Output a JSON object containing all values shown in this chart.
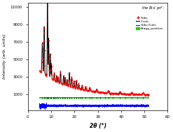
{
  "title": "the Bi$_2$I prf :",
  "xlabel": "2θ (°)",
  "ylabel": "Intensity (arb. units)",
  "xlim": [
    0,
    60
  ],
  "ylim": [
    -800,
    11500
  ],
  "yticks": [
    1000,
    3000,
    5000,
    7000,
    9000,
    11000
  ],
  "xticks": [
    0,
    10,
    20,
    30,
    40,
    50,
    60
  ],
  "legend_labels": [
    "Yobs",
    "Ycalc",
    "Yobs-Ycalc",
    "Bragg_position"
  ],
  "bg_color": "#ffffff",
  "bragg_bar_y": 600,
  "bragg_bar_height": 200,
  "bragg_bar_color": "#22cc22",
  "diff_baseline": -300,
  "diff_amplitude": 60
}
